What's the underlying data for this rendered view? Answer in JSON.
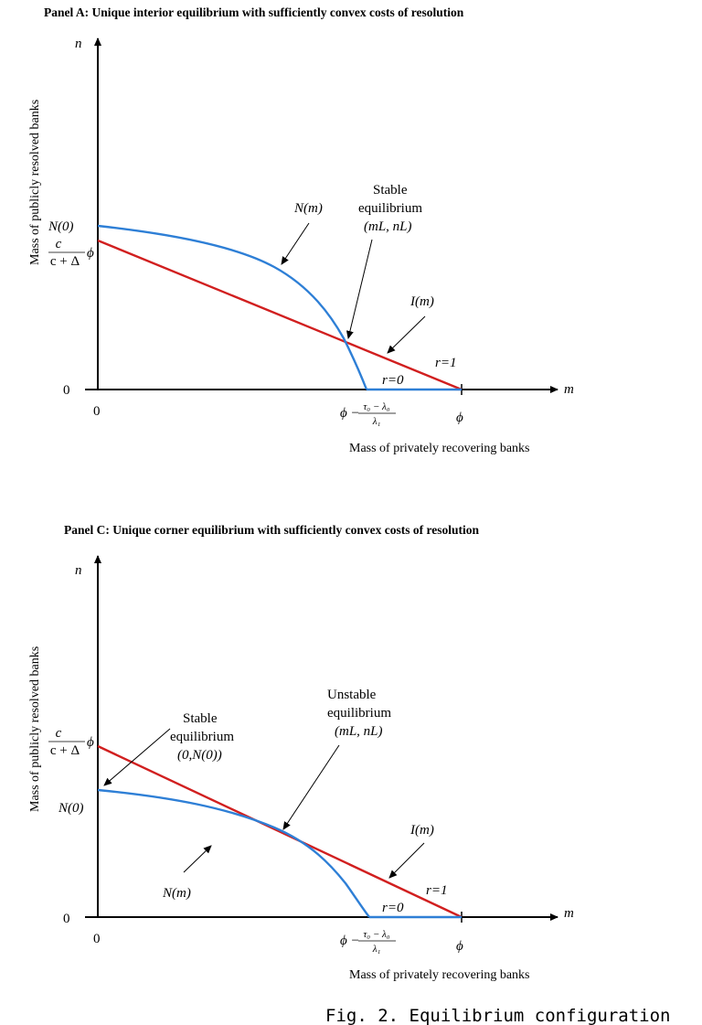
{
  "colors": {
    "accent_red": "#d11f1f",
    "accent_blue": "#2e7fd6",
    "axis": "#000000"
  },
  "panel_a": {
    "title": "Panel A: Unique interior equilibrium with sufficiently convex costs of resolution",
    "y_axis_var": "n",
    "x_axis_var": "m",
    "y_axis_label": "Mass of publicly resolved banks",
    "x_axis_label": "Mass of privately recovering banks",
    "label_n0": "N(0)",
    "label_frac_num": "c",
    "label_frac_den": "c + Δ",
    "label_frac_phi": "ϕ",
    "label_zero_y": "0",
    "label_zero_x": "0",
    "label_Nm": "N(m)",
    "label_Im": "I(m)",
    "stable_l1": "Stable",
    "stable_l2": "equilibrium",
    "stable_l3": "(mL, nL)",
    "label_r1": "r=1",
    "label_r0": "r=0",
    "tick_phi_minus": "ϕ −",
    "tick_num": "τ₀ − λ₀",
    "tick_den": "λ₁",
    "tick_phi": "ϕ"
  },
  "panel_c": {
    "title": "Panel C: Unique corner equilibrium with sufficiently convex costs of resolution",
    "y_axis_var": "n",
    "x_axis_var": "m",
    "y_axis_label": "Mass of publicly resolved banks",
    "x_axis_label": "Mass of privately recovering banks",
    "label_n0": "N(0)",
    "label_frac_num": "c",
    "label_frac_den": "c + Δ",
    "label_frac_phi": "ϕ",
    "label_zero_y": "0",
    "label_zero_x": "0",
    "label_Nm": "N(m)",
    "label_Im": "I(m)",
    "stable_l1": "Stable",
    "stable_l2": "equilibrium",
    "stable_l3": "(0,N(0))",
    "unstable_l1": "Unstable",
    "unstable_l2": "equilibrium",
    "unstable_l3": "(mL, nL)",
    "label_r1": "r=1",
    "label_r0": "r=0",
    "tick_phi_minus": "ϕ −",
    "tick_num": "τ₀ − λ₀",
    "tick_den": "λ₁",
    "tick_phi": "ϕ"
  },
  "caption": "Fig. 2. Equilibrium configuration"
}
